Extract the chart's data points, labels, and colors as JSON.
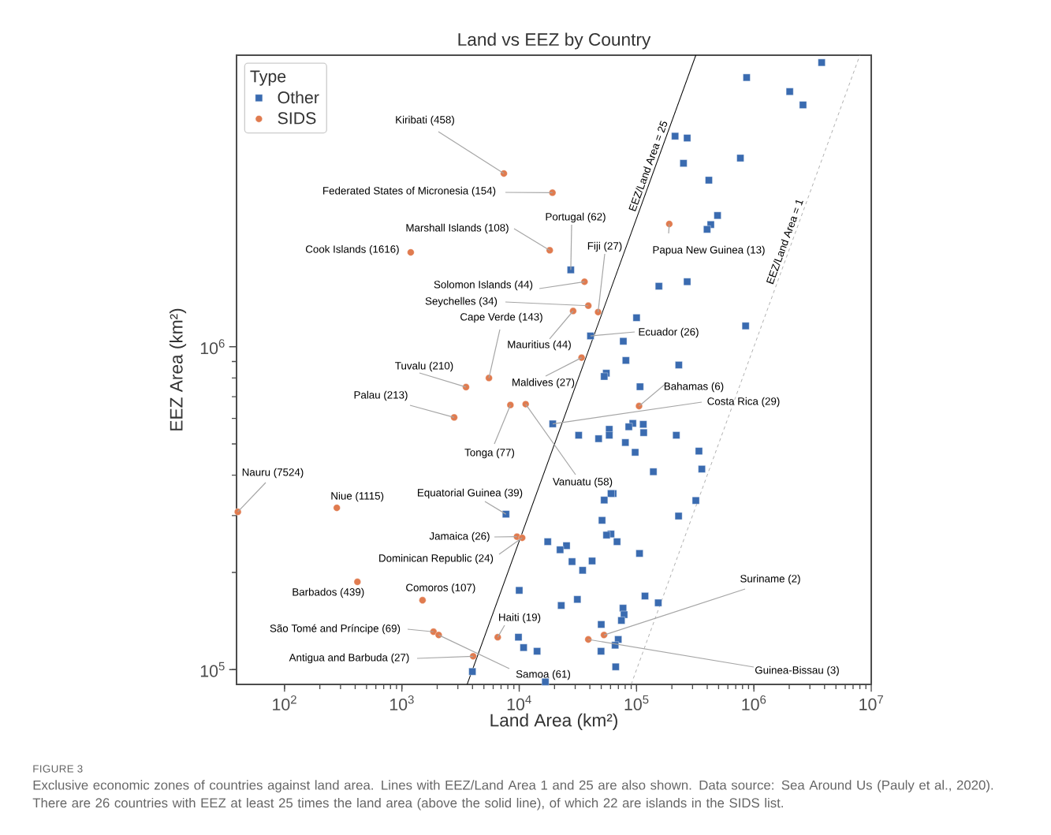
{
  "chart_data": {
    "type": "scatter",
    "title": "Land vs EEZ by Country",
    "xlabel": "Land Area (km²)",
    "ylabel": "EEZ Area (km²)",
    "legend_title": "Type",
    "legend": "top left",
    "grid": false,
    "log": "xy",
    "xlim": [
      39,
      10000000
    ],
    "ylim": [
      90000,
      8000000
    ],
    "xticks": [
      {
        "value": 100,
        "label": "10$^{2}$"
      },
      {
        "value": 1000,
        "label": "10$^{3}$"
      },
      {
        "value": 10000,
        "label": "10$^{4}$"
      },
      {
        "value": 100000,
        "label": "10$^{5}$"
      },
      {
        "value": 1000000,
        "label": "10$^{6}$"
      },
      {
        "value": 10000000,
        "label": "10$^{7}$"
      }
    ],
    "yticks": [
      {
        "value": 100000,
        "label": "10$^{5}$"
      },
      {
        "value": 1000000,
        "label": "10$^{6}$"
      }
    ],
    "series": [
      {
        "name": "Other",
        "type": "scatter",
        "marker": "square",
        "color": "#3a6bb0",
        "x": [
          27500,
          40500,
          19300,
          7710,
          3990,
          3780000,
          867000,
          2020000,
          2620000,
          213000,
          270000,
          767000,
          251000,
          413000,
          490000,
          429000,
          399000,
          155000,
          270000,
          100000,
          850000,
          77100,
          81100,
          229000,
          55200,
          53000,
          107000,
          32100,
          47500,
          58500,
          58500,
          92900,
          85900,
          114000,
          115000,
          218000,
          80300,
          97300,
          340000,
          360000,
          139000,
          63100,
          60600,
          53000,
          320000,
          228000,
          50800,
          60500,
          55500,
          68200,
          17500,
          25300,
          22300,
          106000,
          41800,
          28200,
          34700,
          10000,
          31300,
          22800,
          118000,
          153000,
          76700,
          78300,
          74300,
          50000,
          69800,
          65700,
          49800,
          66400,
          16700,
          9850,
          10900,
          14200
        ],
        "values": [
          1730000,
          1080000,
          577000,
          303000,
          98600,
          7590000,
          6820000,
          6170000,
          5610000,
          4490000,
          4430000,
          3840000,
          3700000,
          3280000,
          2550000,
          2390000,
          2310000,
          1540000,
          1590000,
          1230000,
          1160000,
          1040000,
          907000,
          878000,
          828000,
          809000,
          752000,
          532000,
          519000,
          555000,
          532000,
          579000,
          565000,
          575000,
          542000,
          532000,
          505000,
          471000,
          475000,
          418000,
          410000,
          351000,
          351000,
          335000,
          334000,
          299000,
          290000,
          263000,
          261000,
          249000,
          249000,
          242000,
          235000,
          229000,
          217000,
          216000,
          203000,
          176000,
          165000,
          158000,
          169000,
          161000,
          155000,
          148000,
          142000,
          138000,
          124000,
          119000,
          114000,
          102000,
          91600,
          126000,
          117000,
          114000
        ]
      },
      {
        "name": "SIDS",
        "type": "scatter",
        "marker": "circle",
        "color": "#e07b4f",
        "x": [
          7400,
          19200,
          18200,
          1190,
          47000,
          190000,
          36000,
          38800,
          5520,
          28800,
          3520,
          34000,
          105000,
          2790,
          8410,
          11350,
          40,
          279,
          9570,
          10600,
          52800,
          418,
          1500,
          6560,
          1860,
          4050,
          2060,
          38800
        ],
        "values": [
          3440000,
          3000000,
          1990000,
          1960000,
          1280000,
          2400000,
          1590000,
          1340000,
          800000,
          1290000,
          750000,
          925000,
          655000,
          604000,
          660000,
          664000,
          308000,
          317000,
          258000,
          256000,
          128000,
          187000,
          164000,
          126000,
          131000,
          110000,
          128000,
          124000
        ]
      },
      {
        "name": "EEZ/Land Area = 25",
        "type": "line",
        "line_style": "solid",
        "color": "#000000",
        "x": [
          3600,
          320000
        ],
        "values": [
          90000,
          8000000
        ]
      },
      {
        "name": "EEZ/Land Area = 1",
        "type": "line",
        "line_style": "dashed",
        "color": "#888888",
        "x": [
          90000,
          8000000
        ],
        "values": [
          90000,
          8000000
        ]
      }
    ],
    "annotations": [
      {
        "text": "Kiribati (458)",
        "x": 7400,
        "y": 3440000
      },
      {
        "text": "Federated States of Micronesia (154)",
        "x": 19200,
        "y": 3000000
      },
      {
        "text": "Portugal (62)",
        "x": 27500,
        "y": 1730000
      },
      {
        "text": "Marshall Islands (108)",
        "x": 18200,
        "y": 1990000
      },
      {
        "text": "Cook Islands (1616)",
        "x": 1190,
        "y": 1960000
      },
      {
        "text": "Fiji (27)",
        "x": 47000,
        "y": 1280000
      },
      {
        "text": "Papua New Guinea (13)",
        "x": 190000,
        "y": 2400000
      },
      {
        "text": "Solomon Islands (44)",
        "x": 36000,
        "y": 1590000
      },
      {
        "text": "Seychelles (34)",
        "x": 38800,
        "y": 1340000
      },
      {
        "text": "Cape Verde (143)",
        "x": 5520,
        "y": 800000
      },
      {
        "text": "Mauritius (44)",
        "x": 28800,
        "y": 1290000
      },
      {
        "text": "Ecuador (26)",
        "x": 40500,
        "y": 1080000
      },
      {
        "text": "Tuvalu (210)",
        "x": 3520,
        "y": 750000
      },
      {
        "text": "Maldives (27)",
        "x": 34000,
        "y": 925000
      },
      {
        "text": "Bahamas (6)",
        "x": 105000,
        "y": 655000
      },
      {
        "text": "Costa Rica (29)",
        "x": 19300,
        "y": 577000
      },
      {
        "text": "Palau (213)",
        "x": 2790,
        "y": 604000
      },
      {
        "text": "Tonga (77)",
        "x": 8410,
        "y": 660000
      },
      {
        "text": "Vanuatu (58)",
        "x": 11350,
        "y": 664000
      },
      {
        "text": "Nauru (7524)",
        "x": 40,
        "y": 308000
      },
      {
        "text": "Niue (1115)",
        "x": 279,
        "y": 317000
      },
      {
        "text": "Equatorial Guinea (39)",
        "x": 7710,
        "y": 303000
      },
      {
        "text": "Jamaica (26)",
        "x": 9570,
        "y": 258000
      },
      {
        "text": "Dominican Republic (24)",
        "x": 10600,
        "y": 256000
      },
      {
        "text": "Suriname (2)",
        "x": 52800,
        "y": 128000
      },
      {
        "text": "Barbados (439)",
        "x": 418,
        "y": 187000
      },
      {
        "text": "Comoros (107)",
        "x": 1500,
        "y": 164000
      },
      {
        "text": "Haiti (19)",
        "x": 6560,
        "y": 126000
      },
      {
        "text": "São Tomé and Príncipe (69)",
        "x": 1860,
        "y": 131000
      },
      {
        "text": "Antigua and Barbuda (27)",
        "x": 4050,
        "y": 110000
      },
      {
        "text": "Samoa (61)",
        "x": 2060,
        "y": 128000
      },
      {
        "text": "Guinea-Bissau (3)",
        "x": 38800,
        "y": 124000
      },
      "FIGURE 3",
      "Exclusive economic zones of countries against land area. Lines with EEZ/Land Area 1 and 25 are also shown. Data source: Sea Around Us (Pauly et al., 2020). There are 26 countries with EEZ at least 25 times the land area (above the solid line), of which 22 are islands in the SIDS list."
    ]
  }
}
